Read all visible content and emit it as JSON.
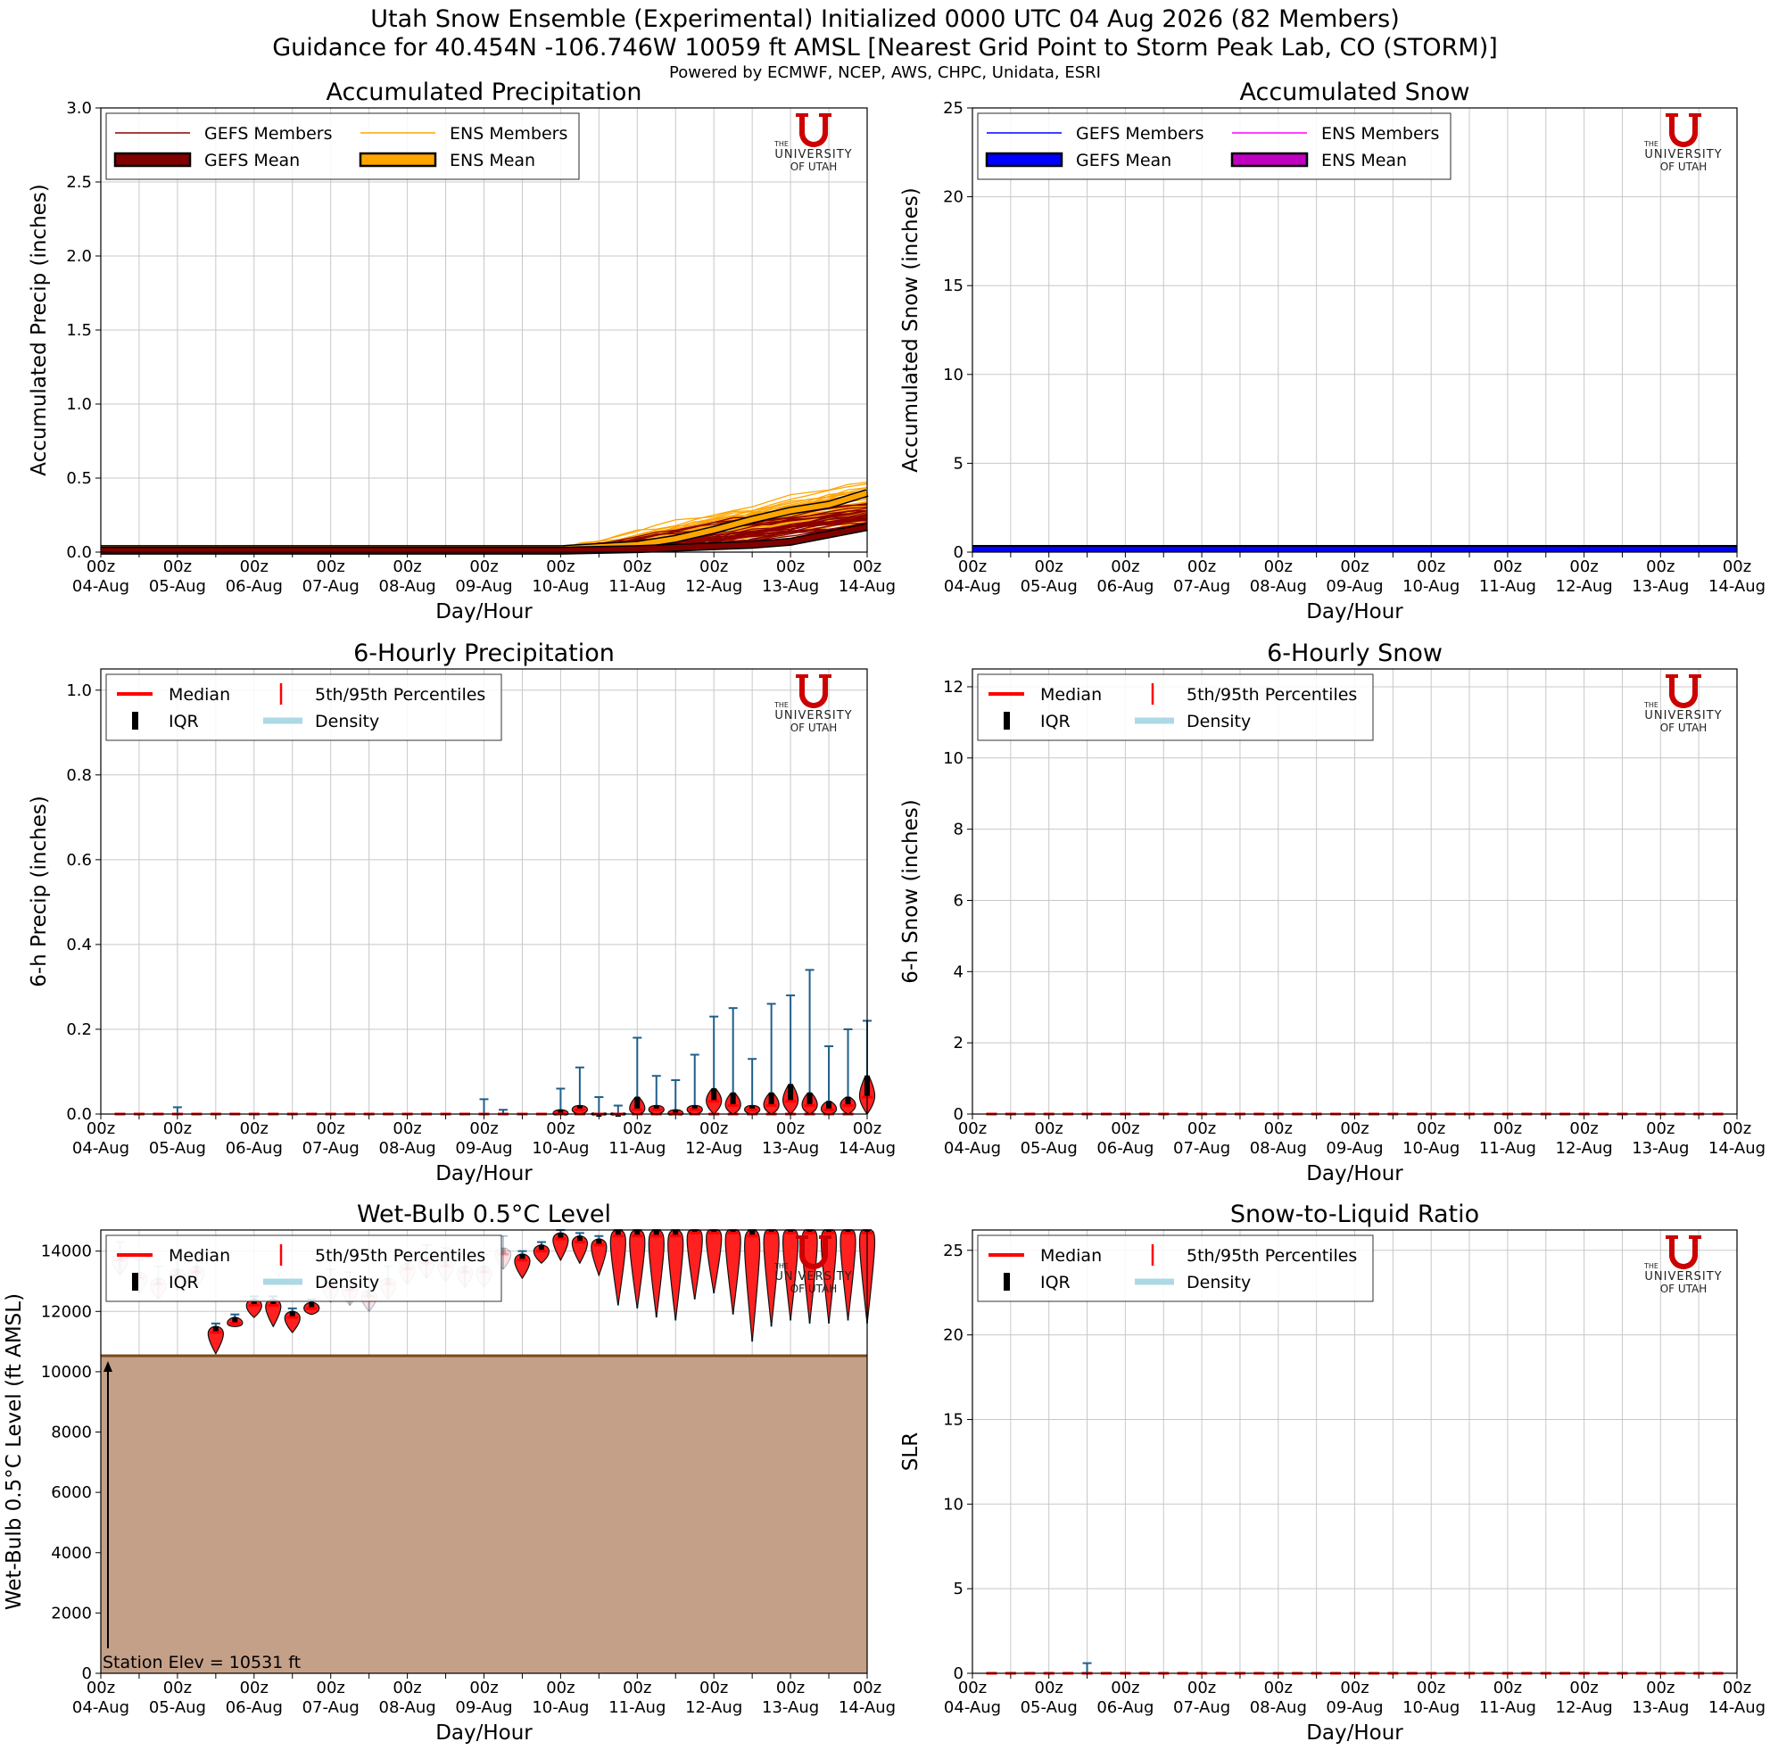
{
  "header": {
    "line1": "Utah Snow Ensemble (Experimental) Initialized 0000 UTC 04 Aug 2026 (82 Members)",
    "line2": "Guidance for 40.454N -106.746W 10059 ft AMSL [Nearest Grid Point to Storm Peak Lab, CO (STORM)]",
    "line3": "Powered by ECMWF, NCEP, AWS, CHPC, Unidata, ESRI"
  },
  "logo": {
    "the": "THE",
    "university": "UNIVERSITY",
    "of_utah": "OF UTAH",
    "color": "#cc0000"
  },
  "xaxis": {
    "label": "Day/Hour",
    "hours": [
      "00z",
      "00z",
      "00z",
      "00z",
      "00z",
      "00z",
      "00z",
      "00z",
      "00z",
      "00z",
      "00z"
    ],
    "days": [
      "04-Aug",
      "05-Aug",
      "06-Aug",
      "07-Aug",
      "08-Aug",
      "09-Aug",
      "10-Aug",
      "11-Aug",
      "12-Aug",
      "13-Aug",
      "14-Aug"
    ]
  },
  "colors": {
    "gefs_member": "#8b0000",
    "gefs_mean": "#800000",
    "ens_member": "#ffa500",
    "ens_mean": "#ffa500",
    "gefs_snow_member": "#0000ff",
    "gefs_snow_mean": "#0000ff",
    "ens_snow_member": "#ff00ff",
    "ens_snow_mean": "#c000c0",
    "median": "#ff0000",
    "density": "#add8e6",
    "whisker": "#1f5f8b",
    "terrain": "#c4a089",
    "terrain_edge": "#7a4a1a"
  },
  "chart_data": [
    {
      "id": "accum_precip",
      "type": "line",
      "title": "Accumulated Precipitation",
      "xlabel": "Day/Hour",
      "ylabel": "Accumulated Precip (inches)",
      "xlim_days": [
        0,
        10
      ],
      "ylim": [
        0,
        3.0
      ],
      "yticks": [
        "0.0",
        "0.5",
        "1.0",
        "1.5",
        "2.0",
        "2.5",
        "3.0"
      ],
      "legend": [
        "GEFS Members",
        "GEFS Mean",
        "ENS Members",
        "ENS Mean"
      ],
      "legend_loc": "upper-left",
      "series": [
        {
          "name": "ENS Mean",
          "x": [
            0,
            6,
            7,
            7.5,
            8,
            8.5,
            9,
            9.5,
            10
          ],
          "values": [
            0.02,
            0.02,
            0.05,
            0.09,
            0.15,
            0.22,
            0.28,
            0.32,
            0.4
          ]
        },
        {
          "name": "GEFS Mean",
          "x": [
            0,
            6,
            7,
            7.5,
            8,
            8.5,
            9,
            9.5,
            10
          ],
          "values": [
            0.01,
            0.01,
            0.02,
            0.03,
            0.04,
            0.05,
            0.07,
            0.12,
            0.17
          ]
        }
      ]
    },
    {
      "id": "accum_snow",
      "type": "line",
      "title": "Accumulated Snow",
      "xlabel": "Day/Hour",
      "ylabel": "Accumulated Snow (inches)",
      "xlim_days": [
        0,
        10
      ],
      "ylim": [
        0,
        25
      ],
      "yticks": [
        "0",
        "5",
        "10",
        "15",
        "20",
        "25"
      ],
      "legend": [
        "GEFS Members",
        "GEFS Mean",
        "ENS Members",
        "ENS Mean"
      ],
      "legend_loc": "upper-left",
      "series": [
        {
          "name": "GEFS Mean",
          "x": [
            0,
            10
          ],
          "values": [
            0.0,
            0.0
          ]
        },
        {
          "name": "ENS Mean",
          "x": [
            0,
            10
          ],
          "values": [
            0.0,
            0.0
          ]
        }
      ]
    },
    {
      "id": "precip_6h",
      "type": "violin",
      "title": "6-Hourly Precipitation",
      "xlabel": "Day/Hour",
      "ylabel": "6-h Precip (inches)",
      "xlim_days": [
        0,
        10
      ],
      "ylim": [
        0,
        1.05
      ],
      "yticks": [
        "0.0",
        "0.2",
        "0.4",
        "0.6",
        "0.8",
        "1.0"
      ],
      "legend": [
        "Median",
        "IQR",
        "5th/95th Percentiles",
        "Density"
      ],
      "legend_loc": "upper-left",
      "x": [
        6,
        6.25,
        6.5,
        6.75,
        7,
        7.25,
        7.5,
        7.75,
        8,
        8.25,
        8.5,
        8.75,
        9,
        9.25,
        9.5,
        9.75,
        10
      ],
      "p95": [
        0.06,
        0.11,
        0.04,
        0.02,
        0.18,
        0.09,
        0.08,
        0.14,
        0.23,
        0.25,
        0.13,
        0.26,
        0.28,
        0.34,
        0.16,
        0.2,
        0.22
      ],
      "p75": [
        0.01,
        0.02,
        0.0,
        0.0,
        0.04,
        0.02,
        0.01,
        0.02,
        0.06,
        0.05,
        0.02,
        0.05,
        0.07,
        0.05,
        0.03,
        0.04,
        0.09
      ],
      "median": [
        0.0,
        0.01,
        0.0,
        0.0,
        0.01,
        0.01,
        0.0,
        0.01,
        0.03,
        0.02,
        0.01,
        0.02,
        0.03,
        0.02,
        0.01,
        0.02,
        0.04
      ]
    },
    {
      "id": "snow_6h",
      "type": "violin",
      "title": "6-Hourly Snow",
      "xlabel": "Day/Hour",
      "ylabel": "6-h Snow (inches)",
      "xlim_days": [
        0,
        10
      ],
      "ylim": [
        0,
        12.5
      ],
      "yticks": [
        "0",
        "2",
        "4",
        "6",
        "8",
        "10",
        "12"
      ],
      "legend": [
        "Median",
        "IQR",
        "5th/95th Percentiles",
        "Density"
      ],
      "legend_loc": "upper-left",
      "values": "all 0"
    },
    {
      "id": "wetbulb",
      "type": "violin",
      "title": "Wet-Bulb 0.5°C Level",
      "xlabel": "Day/Hour",
      "ylabel": "Wet-Bulb 0.5°C Level (ft AMSL)",
      "xlim_days": [
        0,
        10
      ],
      "ylim": [
        0,
        14700
      ],
      "yticks": [
        "0",
        "2000",
        "4000",
        "6000",
        "8000",
        "10000",
        "12000",
        "14000"
      ],
      "legend": [
        "Median",
        "IQR",
        "5th/95th Percentiles",
        "Density"
      ],
      "legend_loc": "upper-left",
      "annotation": "Station Elev = 10531 ft",
      "station_elev": 10531,
      "x": [
        1.5,
        1.75,
        2,
        2.25,
        2.5,
        2.75,
        5.5,
        5.75,
        6,
        6.25,
        6.5,
        6.75,
        7,
        7.25,
        7.5,
        7.75,
        8,
        8.25,
        8.5,
        8.75,
        9,
        9.25,
        9.5,
        9.75,
        10
      ],
      "median": [
        11300,
        11600,
        12200,
        12200,
        11800,
        12100,
        13700,
        14000,
        14400,
        14300,
        14200,
        14500,
        14500,
        14500,
        14500,
        14600,
        14600,
        14600,
        14500,
        14600,
        14600,
        14600,
        14600,
        14600,
        14600
      ],
      "p5": [
        10600,
        11500,
        11800,
        11500,
        11300,
        11900,
        13100,
        13600,
        13700,
        13600,
        13200,
        12200,
        12100,
        11800,
        11700,
        12400,
        12600,
        11900,
        11000,
        11500,
        11700,
        11600,
        11600,
        11700,
        11600
      ]
    },
    {
      "id": "slr",
      "type": "violin",
      "title": "Snow-to-Liquid Ratio",
      "xlabel": "Day/Hour",
      "ylabel": "SLR",
      "xlim_days": [
        0,
        10
      ],
      "ylim": [
        0,
        26.2
      ],
      "yticks": [
        "0",
        "5",
        "10",
        "15",
        "20",
        "25"
      ],
      "legend": [
        "Median",
        "IQR",
        "5th/95th Percentiles",
        "Density"
      ],
      "legend_loc": "upper-left",
      "values": "all 0",
      "outlier": {
        "x": 1.5,
        "value": 0.6
      }
    }
  ]
}
